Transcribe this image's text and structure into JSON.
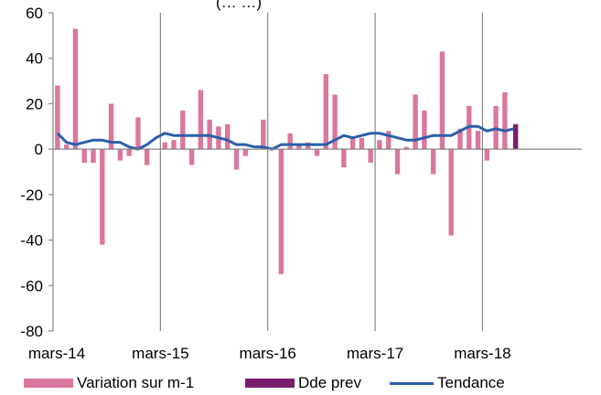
{
  "chart_data": {
    "type": "bar",
    "title": "(…                     …)",
    "xlabel": "",
    "ylabel": "",
    "ylim": [
      -80,
      60
    ],
    "y_ticks": [
      -80,
      -60,
      -40,
      -20,
      0,
      20,
      40,
      60
    ],
    "x_tick_labels": [
      "mars-14",
      "mars-15",
      "mars-16",
      "mars-17",
      "mars-18"
    ],
    "x_tick_month_index": [
      0,
      12,
      24,
      36,
      48
    ],
    "start_month": "2014-03",
    "grid": "vertical lines at x ticks",
    "legend_position": "bottom",
    "colors": {
      "variation": "#d9779f",
      "dde_prev": "#7a1c6e",
      "tendance": "#2c5fa8",
      "grid": "#868686"
    },
    "series": [
      {
        "name": "Variation sur m-1",
        "type": "bar",
        "color": "#d9779f",
        "values": [
          28,
          2,
          53,
          -6,
          -6,
          -42,
          20,
          -5,
          -3,
          14,
          -7,
          0,
          3,
          4,
          17,
          -7,
          26,
          13,
          10,
          11,
          -9,
          -3,
          0,
          13,
          0,
          -55,
          7,
          2,
          3,
          -3,
          33,
          24,
          -8,
          5,
          5,
          -6,
          4,
          8,
          -11,
          1,
          24,
          17,
          -11,
          43,
          -38,
          9,
          19,
          8,
          -5,
          19,
          25
        ]
      },
      {
        "name": "Dde prev",
        "type": "bar",
        "color": "#7a1c6e",
        "month_index": 51,
        "value": 11
      },
      {
        "name": "Tendance",
        "type": "line",
        "color": "#2c5fa8",
        "values": [
          7,
          3,
          2,
          3,
          4,
          4,
          3,
          3,
          1,
          0,
          2,
          5,
          7,
          6,
          6,
          6,
          6,
          6,
          5,
          4,
          2,
          2,
          1,
          1,
          0,
          2,
          2,
          2,
          2,
          2,
          2,
          4,
          6,
          5,
          6,
          7,
          7,
          6,
          5,
          4,
          4,
          5,
          6,
          6,
          6,
          8,
          10,
          10,
          8,
          9,
          8,
          9
        ]
      }
    ]
  }
}
